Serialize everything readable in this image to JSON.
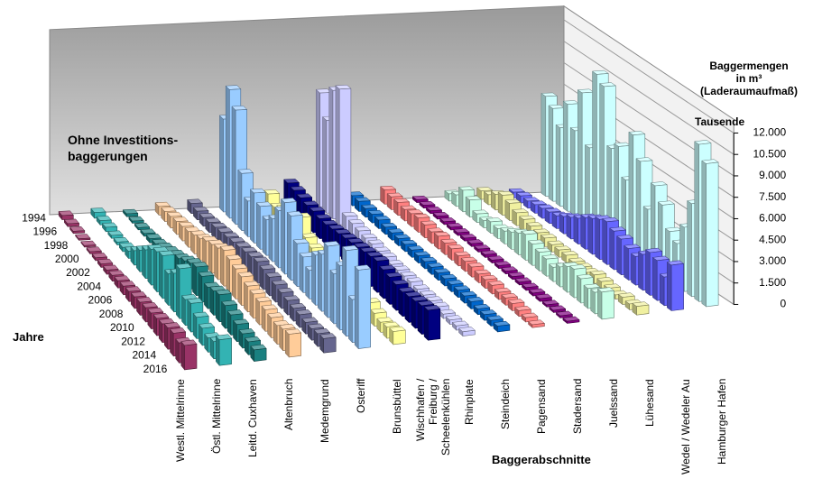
{
  "chart_data": {
    "type": "bar3d",
    "annotation": "Ohne Investitions-\nbaggerungen",
    "y_label": "Baggermengen\nin m³\n(Laderaumaufmaß)",
    "y_unit": "Tausende",
    "depth_label": "Jahre",
    "x_label": "Baggerabschnitte",
    "categories": [
      "Westl. Mittelrinne",
      "Östl. Mittelrinne",
      "Leitd. Cuxhaven",
      "Altenbruch",
      "Medemgrund",
      "Osteriff",
      "Brunsbüttel",
      "Wischhafen / Freiburg /\nScheelenkühlen",
      "Rhinplate",
      "Steindeich",
      "Pagensand",
      "Stadersand",
      "Juelssand",
      "Lühesand",
      "Wedel / Wedeler Au",
      "Hamburger Hafen"
    ],
    "colors": [
      "#993366",
      "#33b3b3",
      "#1a8080",
      "#ffcc99",
      "#66668f",
      "#99ccff",
      "#ffff99",
      "#000080",
      "#ccccff",
      "#0066cc",
      "#ff8080",
      "#800080",
      "#c8ffe8",
      "#f0f0a0",
      "#6666ff",
      "#ccffff"
    ],
    "years": [
      "1994",
      null,
      "1996",
      null,
      "1998",
      null,
      "2000",
      null,
      "2002",
      null,
      "2004",
      null,
      "2006",
      null,
      "2008",
      null,
      "2010",
      null,
      "2012",
      null,
      "2014",
      null,
      "2016"
    ],
    "values": [
      [
        300,
        200,
        150,
        100,
        100,
        150,
        200,
        250,
        300,
        400,
        500,
        600,
        700,
        800,
        900,
        1000,
        1100,
        1200,
        1300,
        1500,
        1600,
        1400,
        1700
      ],
      [
        400,
        300,
        300,
        200,
        200,
        300,
        500,
        1000,
        1500,
        2000,
        2500,
        2800,
        3000,
        2200,
        2700,
        3500,
        1800,
        2000,
        1500,
        1200,
        1000,
        1200,
        1800
      ],
      [
        200,
        150,
        150,
        200,
        300,
        400,
        600,
        800,
        1000,
        1200,
        1500,
        1800,
        2000,
        1800,
        1500,
        1700,
        1900,
        1600,
        1400,
        1200,
        1000,
        900,
        800
      ],
      [
        600,
        700,
        800,
        900,
        1000,
        1100,
        1300,
        1500,
        1800,
        2000,
        2200,
        2500,
        2300,
        2100,
        2000,
        1800,
        1700,
        1600,
        1500,
        1400,
        1300,
        1500,
        1600
      ],
      [
        700,
        600,
        600,
        700,
        800,
        900,
        1000,
        1100,
        1200,
        1300,
        1400,
        1500,
        1400,
        1300,
        1200,
        1100,
        1000,
        900,
        900,
        800,
        800,
        900,
        1000
      ],
      [
        6500,
        9000,
        8000,
        4000,
        2500,
        3500,
        3000,
        2500,
        3000,
        4000,
        5000,
        4500,
        3000,
        2500,
        2000,
        3500,
        4000,
        5000,
        3500,
        4500,
        6000,
        3000,
        5500
      ],
      [
        500,
        500,
        2000,
        1500,
        1800,
        1200,
        1000,
        2500,
        1500,
        1200,
        1000,
        900,
        800,
        700,
        2000,
        1500,
        1000,
        800,
        1200,
        900,
        700,
        800,
        900
      ],
      [
        1800,
        1700,
        1600,
        1500,
        1500,
        1400,
        1400,
        1500,
        1600,
        1700,
        1800,
        1900,
        2000,
        2100,
        2200,
        2000,
        1900,
        1800,
        1700,
        1800,
        1900,
        2000,
        2100
      ],
      [
        8000,
        6500,
        9000,
        9500,
        1000,
        900,
        800,
        700,
        700,
        600,
        600,
        500,
        500,
        500,
        500,
        400,
        400,
        400,
        400,
        300,
        300,
        300,
        300
      ],
      [
        700,
        700,
        600,
        600,
        600,
        500,
        500,
        500,
        500,
        500,
        500,
        500,
        500,
        500,
        500,
        500,
        500,
        500,
        500,
        400,
        400,
        400,
        400
      ],
      [
        1000,
        900,
        900,
        800,
        900,
        1000,
        900,
        800,
        900,
        800,
        800,
        700,
        700,
        700,
        600,
        600,
        600,
        500,
        500,
        500,
        400,
        300,
        200
      ],
      [
        200,
        200,
        200,
        200,
        200,
        200,
        200,
        200,
        200,
        200,
        200,
        200,
        200,
        200,
        200,
        200,
        200,
        200,
        200,
        150,
        150,
        150,
        150
      ],
      [
        500,
        800,
        1500,
        1200,
        600,
        500,
        800,
        700,
        900,
        1200,
        1500,
        1800,
        1500,
        1300,
        1200,
        1000,
        1400,
        1800,
        2000,
        1700,
        1400,
        1500,
        1900
      ],
      [
        600,
        700,
        1100,
        1400,
        1200,
        900,
        800,
        700,
        600,
        600,
        500,
        500,
        500,
        400,
        400,
        400,
        600,
        500,
        400,
        300,
        500,
        400,
        600
      ],
      [
        400,
        500,
        500,
        600,
        700,
        800,
        900,
        1200,
        1500,
        1800,
        2200,
        2500,
        2800,
        3000,
        2700,
        2500,
        2200,
        2000,
        2500,
        3000,
        2800,
        2000,
        3200
      ],
      [
        7000,
        6500,
        5500,
        7500,
        6000,
        9000,
        5500,
        11000,
        10500,
        6500,
        7000,
        5000,
        8500,
        7000,
        4000,
        6000,
        5000,
        3500,
        3000,
        4500,
        6500,
        11000,
        10000
      ]
    ],
    "ylim": [
      0,
      12000
    ],
    "yticks": [
      0,
      {
        "value": 1500,
        "label": "1.500"
      },
      {
        "value": 3000,
        "label": "3.000"
      },
      {
        "value": 4500,
        "label": "4.500"
      },
      {
        "value": 6000,
        "label": "6.000"
      },
      {
        "value": 7500,
        "label": "7.500"
      },
      {
        "value": 9000,
        "label": "9.000"
      },
      {
        "value": 10500,
        "label": "10.500"
      },
      {
        "value": 12000,
        "label": "12.000"
      }
    ],
    "grid": true
  }
}
